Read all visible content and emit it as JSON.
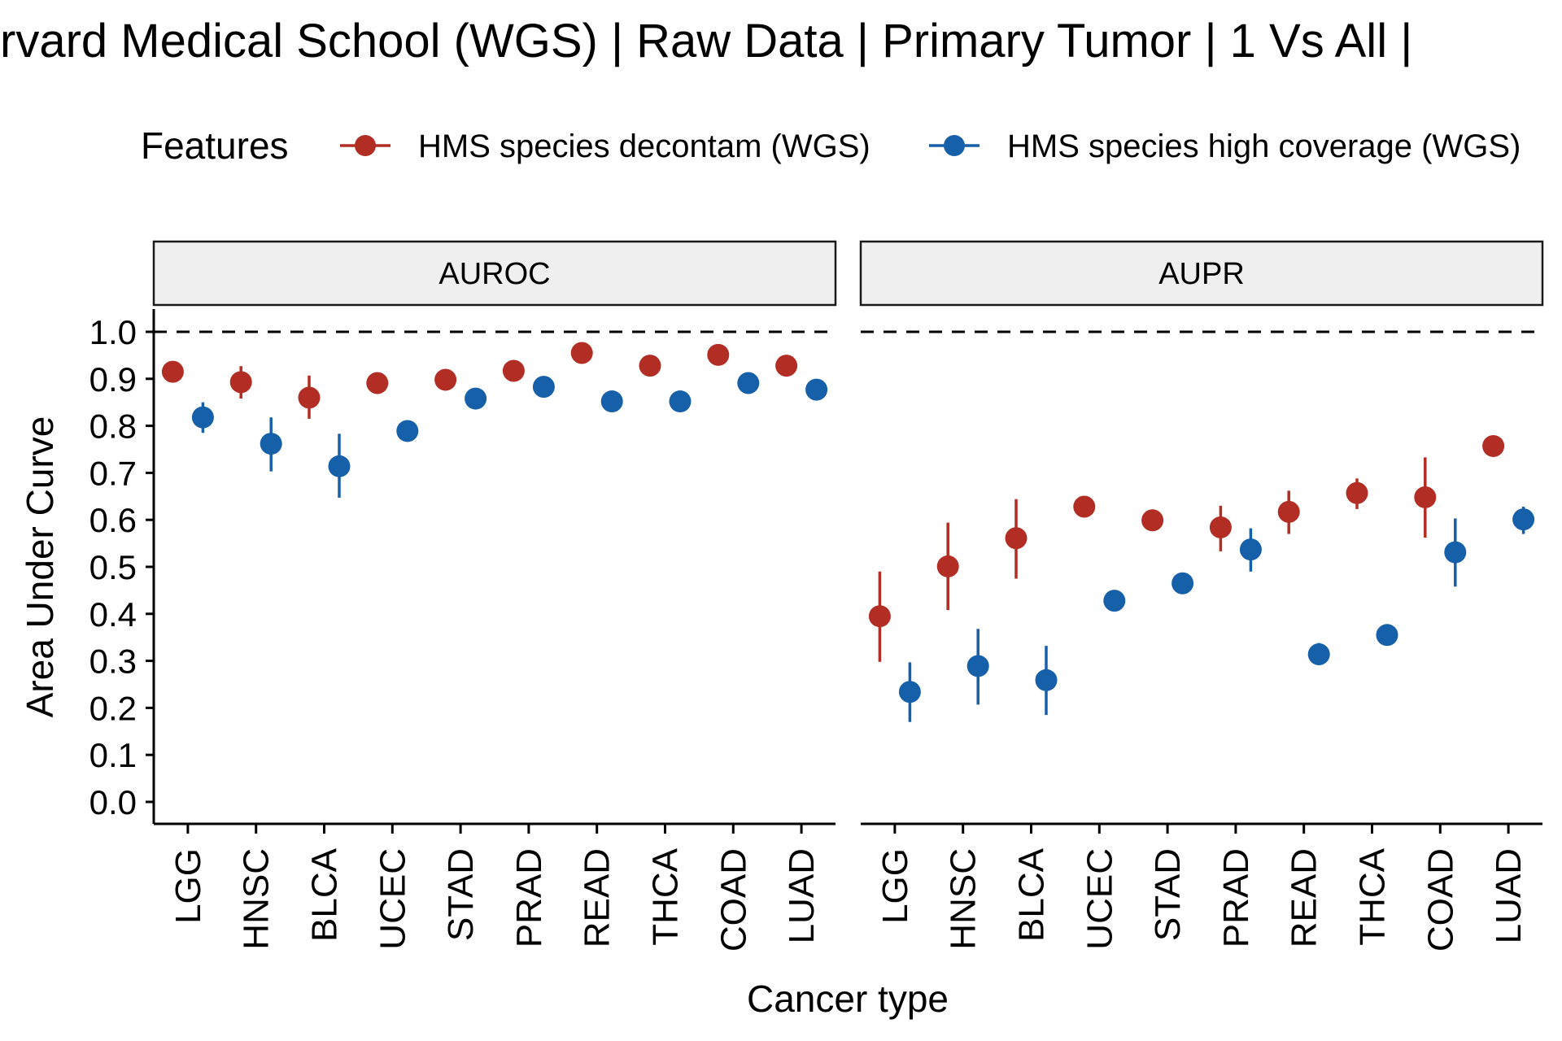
{
  "chart_data": {
    "type": "scatter",
    "title": "rvard Medical School (WGS) | Raw Data | Primary Tumor | 1 Vs All |",
    "xlabel": "Cancer type",
    "ylabel": "Area Under Curve",
    "ylim": [
      0,
      1.05
    ],
    "yticks": [
      "0.0",
      "0.1",
      "0.2",
      "0.3",
      "0.4",
      "0.5",
      "0.6",
      "0.7",
      "0.8",
      "0.9",
      "1.0"
    ],
    "reference_line": 1.0,
    "grid": false,
    "legend": {
      "title": "Features",
      "position": "top",
      "entries": [
        {
          "label": "HMS species decontam (WGS)",
          "color": "#B22D23"
        },
        {
          "label": "HMS species high coverage (WGS)",
          "color": "#1560A8"
        }
      ]
    },
    "categories": [
      "LGG",
      "HNSC",
      "BLCA",
      "UCEC",
      "STAD",
      "PRAD",
      "READ",
      "THCA",
      "COAD",
      "LUAD"
    ],
    "panels": [
      {
        "label": "AUROC",
        "series": [
          {
            "name": "HMS species decontam (WGS)",
            "color": "#B22D23",
            "values": [
              0.915,
              0.893,
              0.86,
              0.891,
              0.898,
              0.917,
              0.955,
              0.928,
              0.951,
              0.928
            ],
            "err_low": [
              0.915,
              0.858,
              0.815,
              0.891,
              0.898,
              0.917,
              0.955,
              0.928,
              0.951,
              0.928
            ],
            "err_high": [
              0.915,
              0.927,
              0.907,
              0.891,
              0.898,
              0.917,
              0.955,
              0.928,
              0.951,
              0.928
            ]
          },
          {
            "name": "HMS species high coverage (WGS)",
            "color": "#1560A8",
            "values": [
              0.818,
              0.762,
              0.714,
              0.789,
              0.858,
              0.883,
              0.852,
              0.852,
              0.891,
              0.877
            ],
            "err_low": [
              0.785,
              0.703,
              0.647,
              0.789,
              0.858,
              0.883,
              0.852,
              0.852,
              0.891,
              0.877
            ],
            "err_high": [
              0.85,
              0.818,
              0.783,
              0.789,
              0.858,
              0.883,
              0.852,
              0.852,
              0.891,
              0.877
            ]
          }
        ]
      },
      {
        "label": "AUPR",
        "series": [
          {
            "name": "HMS species decontam (WGS)",
            "color": "#B22D23",
            "values": [
              0.395,
              0.501,
              0.561,
              0.628,
              0.599,
              0.584,
              0.617,
              0.657,
              0.648,
              0.757
            ],
            "err_low": [
              0.298,
              0.408,
              0.475,
              0.628,
              0.599,
              0.533,
              0.57,
              0.623,
              0.562,
              0.757
            ],
            "err_high": [
              0.49,
              0.594,
              0.644,
              0.628,
              0.599,
              0.63,
              0.662,
              0.688,
              0.733,
              0.757
            ],
            "note": ""
          },
          {
            "name": "HMS species high coverage (WGS)",
            "color": "#1560A8",
            "values": [
              0.234,
              0.289,
              0.259,
              0.428,
              0.465,
              0.537,
              0.314,
              0.355,
              0.531,
              0.601
            ],
            "err_low": [
              0.17,
              0.207,
              0.185,
              0.428,
              0.465,
              0.49,
              0.292,
              0.335,
              0.458,
              0.57
            ],
            "err_high": [
              0.297,
              0.368,
              0.332,
              0.428,
              0.465,
              0.582,
              0.338,
              0.375,
              0.603,
              0.628
            ]
          }
        ]
      }
    ]
  }
}
